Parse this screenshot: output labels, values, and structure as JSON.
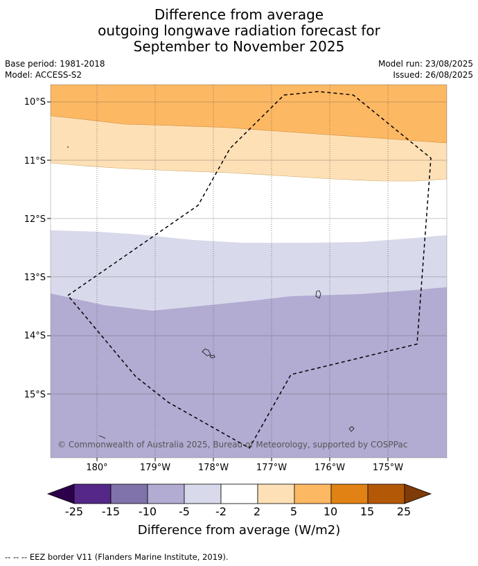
{
  "title": {
    "line1": "Difference from average",
    "line2": "outgoing longwave radiation forecast for",
    "line3": "September to November 2025"
  },
  "meta": {
    "base_period": "Base period: 1981-2018",
    "model": "Model: ACCESS-S2",
    "model_run": "Model run: 23/08/2025",
    "issued": "Issued: 26/08/2025"
  },
  "map": {
    "lat_labels": [
      "10°S",
      "11°S",
      "12°S",
      "13°S",
      "14°S",
      "15°S"
    ],
    "lon_labels": [
      "180°",
      "179°W",
      "178°W",
      "177°W",
      "176°W",
      "175°W"
    ],
    "copyright": "© Commonwealth of Australia 2025, Bureau of Meteorology, supported by COSPPac",
    "region_colors": {
      "orange": "#fdb863",
      "light_orange": "#fee0b6",
      "white": "#ffffff",
      "light_purple": "#d8daeb",
      "purple": "#b2abd2"
    }
  },
  "colorbar": {
    "title": "Difference from average (W/m2)",
    "tick_labels": [
      "-25",
      "-15",
      "-10",
      "-5",
      "-2",
      "2",
      "5",
      "10",
      "15",
      "25"
    ],
    "colors": [
      "#2d004b",
      "#542788",
      "#8073ac",
      "#b2abd2",
      "#d8daeb",
      "#ffffff",
      "#fee0b6",
      "#fdb863",
      "#e08214",
      "#b35806",
      "#7f3b08"
    ]
  },
  "footnote": "--  --  -- EEZ border V11 (Flanders Marine Institute, 2019)."
}
